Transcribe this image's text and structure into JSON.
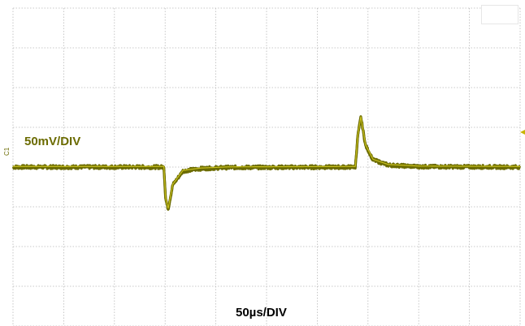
{
  "chart_data": {
    "type": "line",
    "series": [
      {
        "color": "#6b6b00",
        "points": [
          [
            0,
            0
          ],
          [
            5.95,
            0
          ],
          [
            6.02,
            -0.8
          ],
          [
            6.12,
            -1.06
          ],
          [
            6.3,
            -0.45
          ],
          [
            6.7,
            -0.1
          ],
          [
            7.4,
            -0.04
          ],
          [
            8.5,
            -0.01
          ],
          [
            13.5,
            0
          ],
          [
            13.6,
            0.8
          ],
          [
            13.72,
            1.26
          ],
          [
            13.9,
            0.55
          ],
          [
            14.2,
            0.18
          ],
          [
            14.8,
            0.05
          ],
          [
            16,
            0.01
          ],
          [
            20,
            0
          ]
        ]
      }
    ],
    "xlim": [
      0,
      20
    ],
    "ylim": [
      -4,
      4
    ],
    "grid": true,
    "grid_divisions": {
      "x": 10,
      "y": 8
    },
    "vertical_scale_label": "50mV/DIV",
    "horizontal_scale_label": "50µs/DIV",
    "channel_marker": "C1",
    "colors": {
      "trace": "#6b6b00",
      "trace_highlight": "#c8c020",
      "grid": "#b9b9b9",
      "vertical_label": "#6b6b00"
    }
  }
}
